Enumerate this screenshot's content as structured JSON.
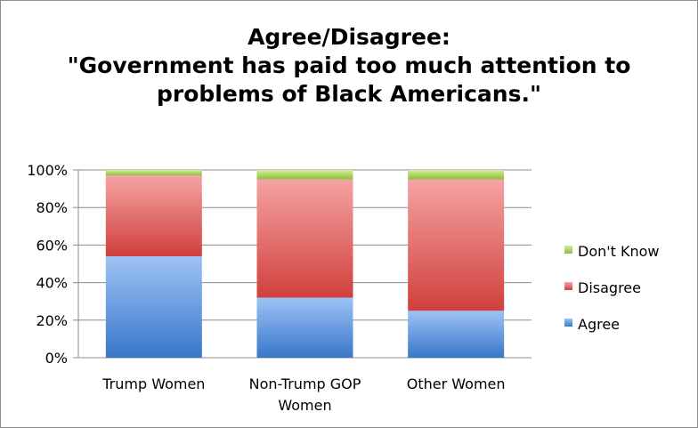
{
  "chart_data": {
    "type": "bar",
    "stacked": true,
    "title_lines": [
      "Agree/Disagree:",
      "\"Government has paid too much attention to",
      "problems of Black Americans.\""
    ],
    "categories": [
      [
        "Trump Women"
      ],
      [
        "Non-Trump GOP",
        "Women"
      ],
      [
        "Other Women"
      ]
    ],
    "series": [
      {
        "name": "Agree",
        "values": [
          54,
          32,
          25
        ],
        "color": "#4f81bd",
        "light": "#9dc3f5",
        "dark": "#3877c9"
      },
      {
        "name": "Disagree",
        "values": [
          43,
          63,
          70
        ],
        "color": "#c0504d",
        "light": "#f5a3a3",
        "dark": "#d0403c"
      },
      {
        "name": "Don't Know",
        "values": [
          3,
          5,
          5
        ],
        "color": "#9bbb59",
        "light": "#d2ef9a",
        "dark": "#8dbd3c"
      }
    ],
    "ylim": [
      0,
      100
    ],
    "yticks": [
      0,
      20,
      40,
      60,
      80,
      100
    ],
    "ytick_labels": [
      "0%",
      "20%",
      "40%",
      "60%",
      "80%",
      "100%"
    ],
    "grid": true,
    "legend_position": "right"
  }
}
